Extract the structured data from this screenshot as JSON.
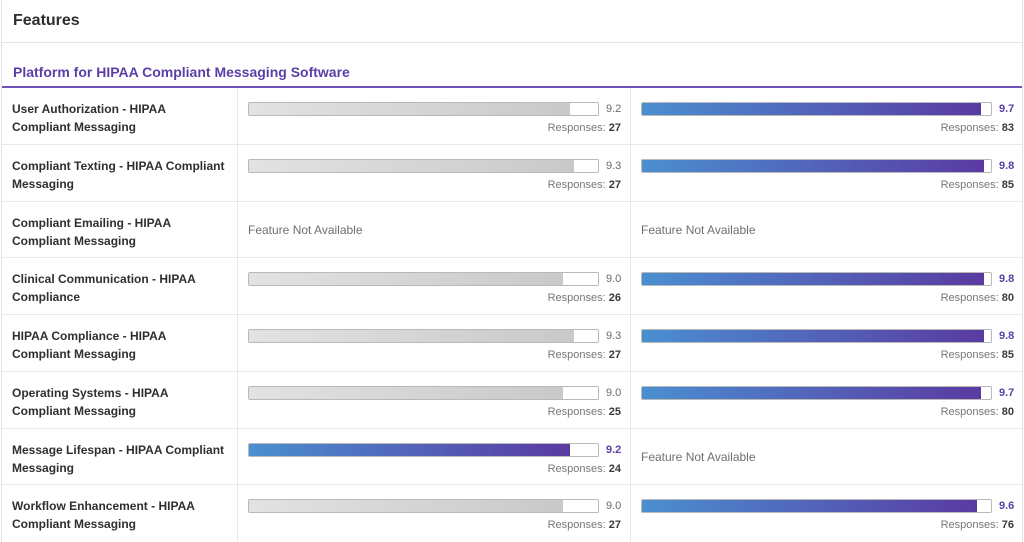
{
  "header": {
    "title": "Features"
  },
  "section": {
    "title": "Platform for HIPAA Compliant Messaging Software"
  },
  "responses_label": "Responses:",
  "not_available_label": "Feature Not Available",
  "colors": {
    "accent": "#5a3fa6",
    "brand_start": "#4a8fd0",
    "brand_end": "#5a3aa2",
    "neutral": "#c9c9c9"
  },
  "score_max": 10,
  "rows": [
    {
      "label": "User Authorization - HIPAA Compliant Messaging",
      "a": {
        "available": true,
        "score": "9.2",
        "responses": "27",
        "style": "gray"
      },
      "b": {
        "available": true,
        "score": "9.7",
        "responses": "83",
        "style": "brand"
      }
    },
    {
      "label": "Compliant Texting - HIPAA Compliant Messaging",
      "a": {
        "available": true,
        "score": "9.3",
        "responses": "27",
        "style": "gray"
      },
      "b": {
        "available": true,
        "score": "9.8",
        "responses": "85",
        "style": "brand"
      }
    },
    {
      "label": "Compliant Emailing - HIPAA Compliant Messaging",
      "a": {
        "available": false
      },
      "b": {
        "available": false
      }
    },
    {
      "label": "Clinical Communication - HIPAA Compliance",
      "a": {
        "available": true,
        "score": "9.0",
        "responses": "26",
        "style": "gray"
      },
      "b": {
        "available": true,
        "score": "9.8",
        "responses": "80",
        "style": "brand"
      }
    },
    {
      "label": "HIPAA Compliance - HIPAA Compliant Messaging",
      "a": {
        "available": true,
        "score": "9.3",
        "responses": "27",
        "style": "gray"
      },
      "b": {
        "available": true,
        "score": "9.8",
        "responses": "85",
        "style": "brand"
      }
    },
    {
      "label": "Operating Systems - HIPAA Compliant Messaging",
      "a": {
        "available": true,
        "score": "9.0",
        "responses": "25",
        "style": "gray"
      },
      "b": {
        "available": true,
        "score": "9.7",
        "responses": "80",
        "style": "brand"
      }
    },
    {
      "label": "Message Lifespan - HIPAA Compliant Messaging",
      "a": {
        "available": true,
        "score": "9.2",
        "responses": "24",
        "style": "brand"
      },
      "b": {
        "available": false
      }
    },
    {
      "label": "Workflow Enhancement - HIPAA Compliant Messaging",
      "a": {
        "available": true,
        "score": "9.0",
        "responses": "27",
        "style": "gray"
      },
      "b": {
        "available": true,
        "score": "9.6",
        "responses": "76",
        "style": "brand"
      }
    }
  ]
}
